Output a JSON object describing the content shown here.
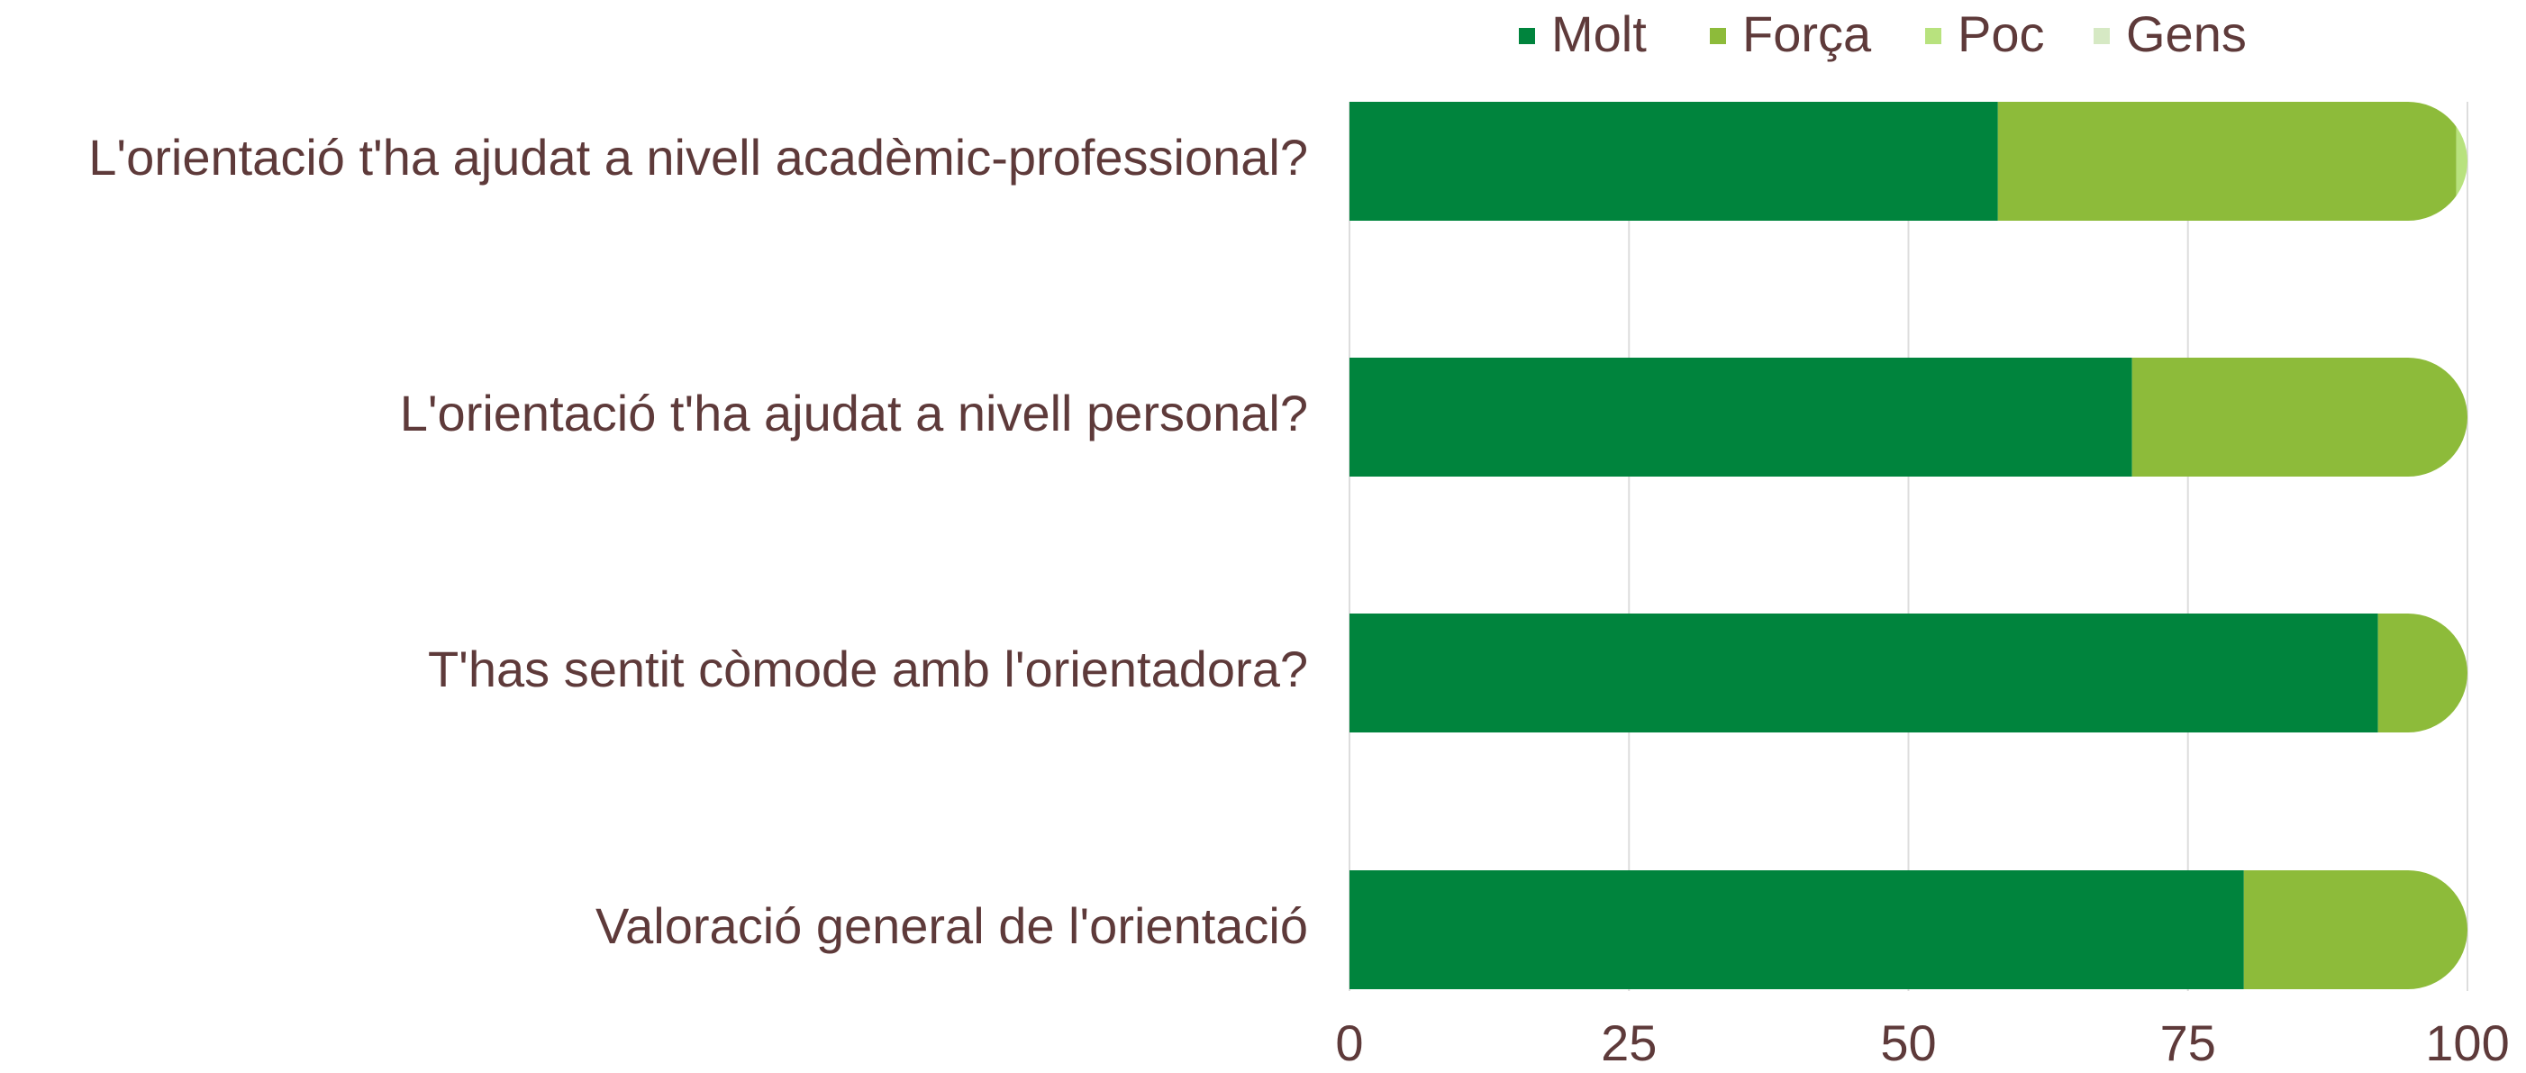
{
  "chart_data": {
    "type": "stacked-barh",
    "categories": [
      "L'orientació t'ha ajudat a nivell acadèmic-professional?",
      "L'orientació t'ha ajudat a nivell personal?",
      "T'has sentit còmode amb l'orientadora?",
      "Valoració general de l'orientació"
    ],
    "series": [
      {
        "name": "Molt",
        "color": "#00843d",
        "values": [
          58,
          70,
          92,
          80
        ]
      },
      {
        "name": "Força",
        "color": "#8dbb3a",
        "values": [
          41,
          30,
          8,
          20
        ]
      },
      {
        "name": "Poc",
        "color": "#b8e27e",
        "values": [
          1,
          0,
          0,
          0
        ]
      },
      {
        "name": "Gens",
        "color": "#d6e9c4",
        "values": [
          0,
          0,
          0,
          0
        ]
      }
    ],
    "xlim": [
      0,
      100
    ],
    "xticks": [
      0,
      25,
      50,
      75,
      100
    ],
    "grid": true,
    "legend": "top"
  }
}
